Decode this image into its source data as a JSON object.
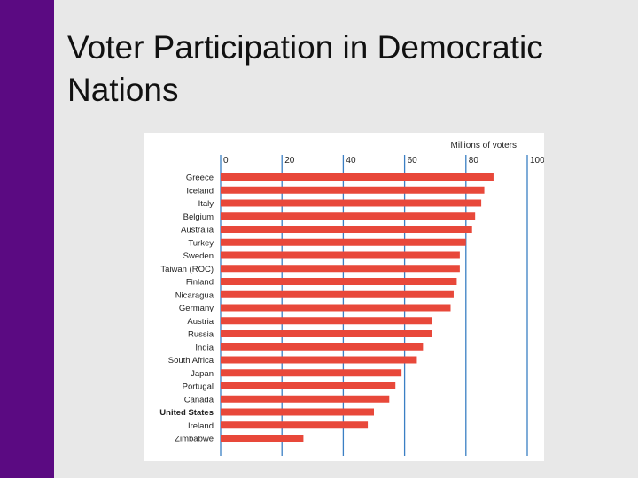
{
  "slide": {
    "title": "Voter Participation in Democratic Nations"
  },
  "colors": {
    "sidebar": "#5b0a82",
    "background": "#e8e8e8",
    "bar": "#e8483a",
    "gridline": "#3a7fc4"
  },
  "chart_data": {
    "type": "bar",
    "orientation": "horizontal",
    "title": "",
    "xlabel": "Millions of voters",
    "ylabel": "",
    "xlim": [
      0,
      100
    ],
    "xticks": [
      0,
      20,
      40,
      60,
      80,
      100
    ],
    "grid": true,
    "categories": [
      "Greece",
      "Iceland",
      "Italy",
      "Belgium",
      "Australia",
      "Turkey",
      "Sweden",
      "Taiwan (ROC)",
      "Finland",
      "Nicaragua",
      "Germany",
      "Austria",
      "Russia",
      "India",
      "South Africa",
      "Japan",
      "Portugal",
      "Canada",
      "United States",
      "Ireland",
      "Zimbabwe"
    ],
    "emphasized_category": "United States",
    "values": [
      89,
      86,
      85,
      83,
      82,
      80,
      78,
      78,
      77,
      76,
      75,
      69,
      69,
      66,
      64,
      59,
      57,
      55,
      50,
      48,
      27
    ]
  }
}
